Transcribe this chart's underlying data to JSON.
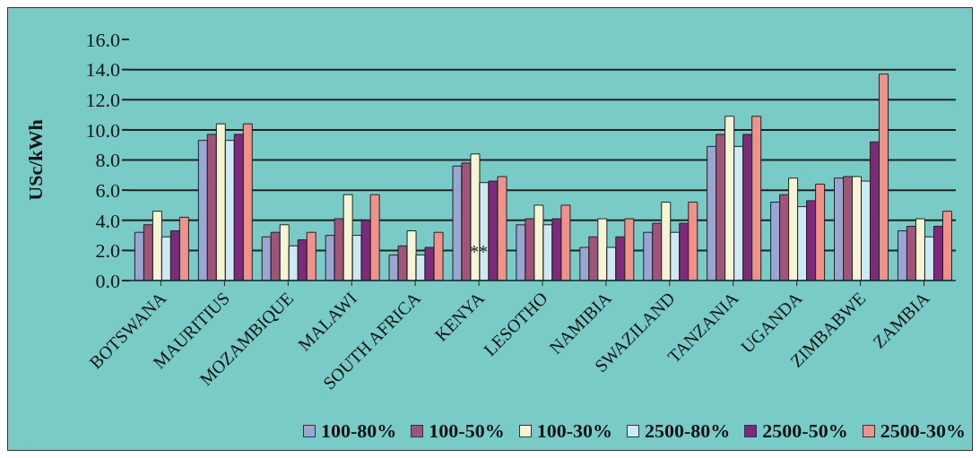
{
  "chart_data": {
    "type": "bar",
    "ylabel": "USc/kWh",
    "categories": [
      "BOTSWANA",
      "MAURITIUS",
      "MOZAMBIQUE",
      "MALAWI",
      "SOUTH AFRICA",
      "KENYA",
      "LESOTHO",
      "NAMIBIA",
      "SWAZILAND",
      "TANZANIA",
      "UGANDA",
      "ZIMBABWE",
      "ZAMBIA"
    ],
    "series": [
      {
        "name": "100-80%",
        "color": "#9aa6d2",
        "values": [
          3.2,
          9.3,
          2.9,
          3.0,
          1.7,
          7.6,
          3.7,
          2.2,
          3.2,
          8.9,
          5.2,
          6.8,
          3.3
        ]
      },
      {
        "name": "100-50%",
        "color": "#a0547a",
        "values": [
          3.7,
          9.7,
          3.2,
          4.1,
          2.3,
          7.8,
          4.1,
          2.9,
          3.8,
          9.7,
          5.7,
          6.9,
          3.6
        ]
      },
      {
        "name": "100-30%",
        "color": "#f5f5d5",
        "values": [
          4.6,
          10.4,
          3.7,
          5.7,
          3.3,
          8.4,
          5.0,
          4.1,
          5.2,
          10.9,
          6.8,
          6.9,
          4.1
        ]
      },
      {
        "name": "2500-80%",
        "color": "#cdeaf2",
        "values": [
          2.9,
          9.3,
          2.3,
          3.0,
          1.7,
          6.5,
          3.7,
          2.2,
          3.2,
          8.9,
          4.9,
          6.6,
          2.9
        ]
      },
      {
        "name": "2500-50%",
        "color": "#7d2a7d",
        "values": [
          3.3,
          9.7,
          2.7,
          4.0,
          2.2,
          6.6,
          4.1,
          2.9,
          3.8,
          9.7,
          5.3,
          9.2,
          3.6
        ]
      },
      {
        "name": "2500-30%",
        "color": "#f0928c",
        "values": [
          4.2,
          10.4,
          3.2,
          5.7,
          3.2,
          6.9,
          5.0,
          4.1,
          5.2,
          10.9,
          6.4,
          13.7,
          4.6
        ]
      }
    ],
    "ylim": [
      0,
      16
    ],
    "yticks": [
      {
        "value": 0,
        "label": "0.0"
      },
      {
        "value": 2,
        "label": "2.0"
      },
      {
        "value": 4,
        "label": "4.0"
      },
      {
        "value": 6,
        "label": "6.0"
      },
      {
        "value": 8,
        "label": "8.0"
      },
      {
        "value": 10,
        "label": "10.0"
      },
      {
        "value": 12,
        "label": "12.0"
      },
      {
        "value": 14,
        "label": "14.0"
      },
      {
        "value": 16,
        "label": "16.0"
      }
    ],
    "grid": "y",
    "legend": "bottom",
    "annotations": [
      {
        "text": "**",
        "x": "KENYA",
        "y": 1.9
      }
    ]
  }
}
